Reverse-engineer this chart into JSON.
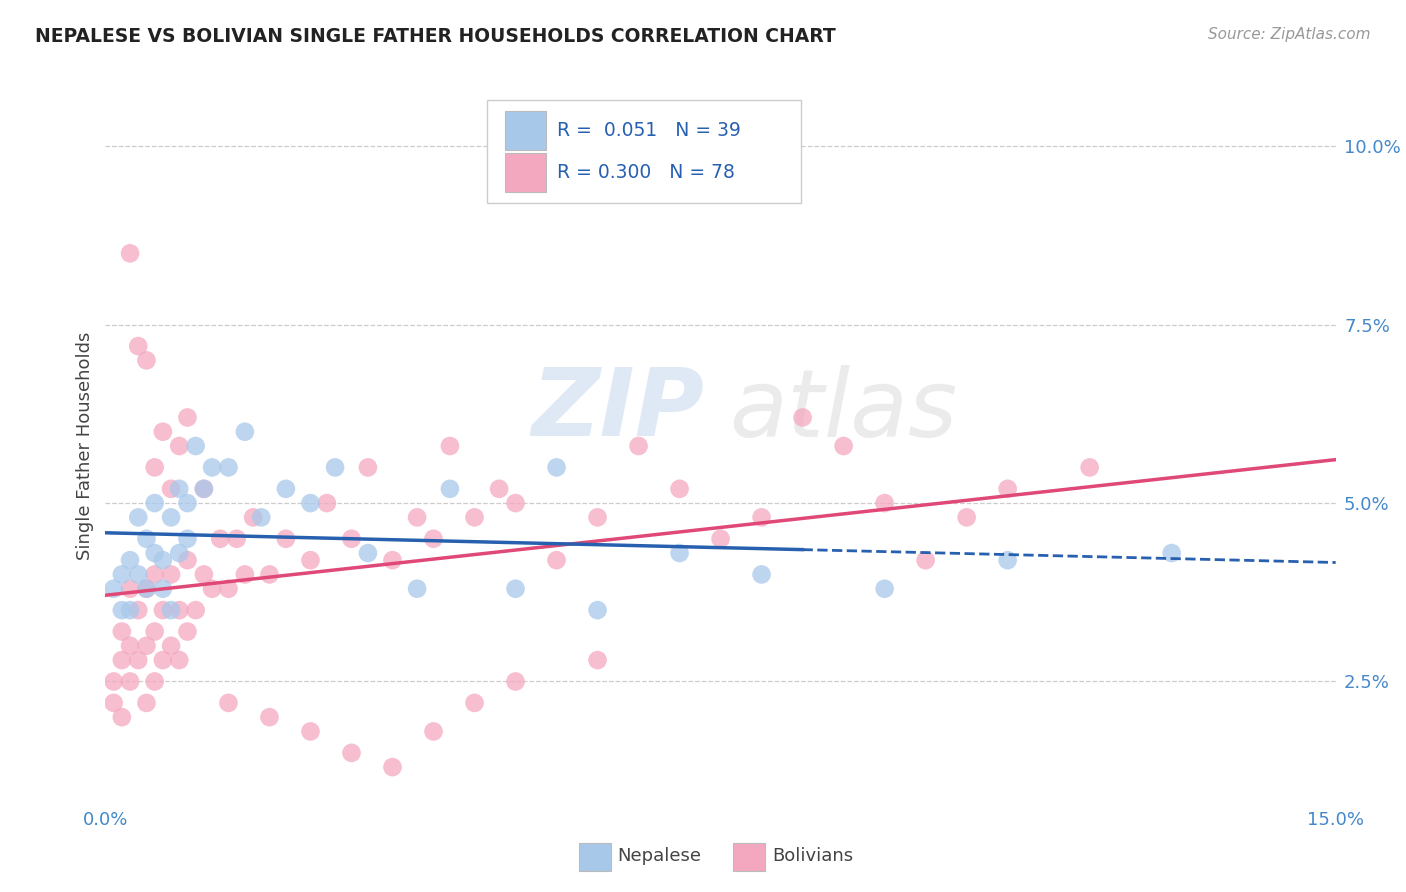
{
  "title": "NEPALESE VS BOLIVIAN SINGLE FATHER HOUSEHOLDS CORRELATION CHART",
  "source": "Source: ZipAtlas.com",
  "ylabel": "Single Father Households",
  "ytick_values": [
    0.025,
    0.05,
    0.075,
    0.1
  ],
  "ytick_labels": [
    "2.5%",
    "5.0%",
    "7.5%",
    "10.0%"
  ],
  "xtick_values": [
    0.0,
    0.15
  ],
  "xtick_labels": [
    "0.0%",
    "15.0%"
  ],
  "xlim": [
    0.0,
    0.15
  ],
  "ylim": [
    0.008,
    0.108
  ],
  "legend_nepalese_R": "0.051",
  "legend_nepalese_N": "39",
  "legend_bolivian_R": "0.300",
  "legend_bolivian_N": "78",
  "nepalese_color": "#a8c8ea",
  "bolivian_color": "#f4a8c0",
  "nepalese_line_color": "#2860b0",
  "bolivian_line_color": "#e04878",
  "nepalese_x": [
    0.001,
    0.002,
    0.002,
    0.003,
    0.003,
    0.004,
    0.004,
    0.005,
    0.005,
    0.006,
    0.006,
    0.007,
    0.007,
    0.008,
    0.008,
    0.009,
    0.009,
    0.01,
    0.01,
    0.011,
    0.012,
    0.013,
    0.015,
    0.017,
    0.019,
    0.022,
    0.025,
    0.028,
    0.032,
    0.038,
    0.042,
    0.05,
    0.055,
    0.06,
    0.07,
    0.08,
    0.095,
    0.11,
    0.13
  ],
  "nepalese_y": [
    0.038,
    0.035,
    0.04,
    0.035,
    0.042,
    0.04,
    0.048,
    0.038,
    0.045,
    0.05,
    0.043,
    0.042,
    0.038,
    0.048,
    0.035,
    0.052,
    0.043,
    0.05,
    0.045,
    0.058,
    0.052,
    0.055,
    0.055,
    0.06,
    0.048,
    0.052,
    0.05,
    0.055,
    0.043,
    0.038,
    0.052,
    0.038,
    0.055,
    0.035,
    0.043,
    0.04,
    0.038,
    0.042,
    0.043
  ],
  "bolivian_x": [
    0.001,
    0.001,
    0.002,
    0.002,
    0.002,
    0.003,
    0.003,
    0.003,
    0.004,
    0.004,
    0.005,
    0.005,
    0.005,
    0.006,
    0.006,
    0.006,
    0.007,
    0.007,
    0.008,
    0.008,
    0.009,
    0.009,
    0.01,
    0.01,
    0.011,
    0.012,
    0.013,
    0.014,
    0.015,
    0.016,
    0.017,
    0.018,
    0.02,
    0.022,
    0.025,
    0.027,
    0.03,
    0.032,
    0.035,
    0.038,
    0.04,
    0.042,
    0.045,
    0.048,
    0.05,
    0.055,
    0.06,
    0.065,
    0.07,
    0.075,
    0.08,
    0.085,
    0.09,
    0.095,
    0.1,
    0.105,
    0.11,
    0.12,
    0.003,
    0.004,
    0.005,
    0.006,
    0.007,
    0.008,
    0.009,
    0.01,
    0.012,
    0.015,
    0.02,
    0.025,
    0.03,
    0.035,
    0.04,
    0.045,
    0.05,
    0.06
  ],
  "bolivian_y": [
    0.025,
    0.022,
    0.028,
    0.02,
    0.032,
    0.025,
    0.03,
    0.038,
    0.028,
    0.035,
    0.022,
    0.03,
    0.038,
    0.025,
    0.032,
    0.04,
    0.028,
    0.035,
    0.03,
    0.04,
    0.028,
    0.035,
    0.032,
    0.042,
    0.035,
    0.04,
    0.038,
    0.045,
    0.038,
    0.045,
    0.04,
    0.048,
    0.04,
    0.045,
    0.042,
    0.05,
    0.045,
    0.055,
    0.042,
    0.048,
    0.045,
    0.058,
    0.048,
    0.052,
    0.05,
    0.042,
    0.048,
    0.058,
    0.052,
    0.045,
    0.048,
    0.062,
    0.058,
    0.05,
    0.042,
    0.048,
    0.052,
    0.055,
    0.085,
    0.072,
    0.07,
    0.055,
    0.06,
    0.052,
    0.058,
    0.062,
    0.052,
    0.022,
    0.02,
    0.018,
    0.015,
    0.013,
    0.018,
    0.022,
    0.025,
    0.028
  ],
  "nep_line_solid_end": 0.085,
  "bkg_color": "#ffffff",
  "grid_color": "#cccccc",
  "tick_color": "#4488cc",
  "title_color": "#222222",
  "source_color": "#999999"
}
